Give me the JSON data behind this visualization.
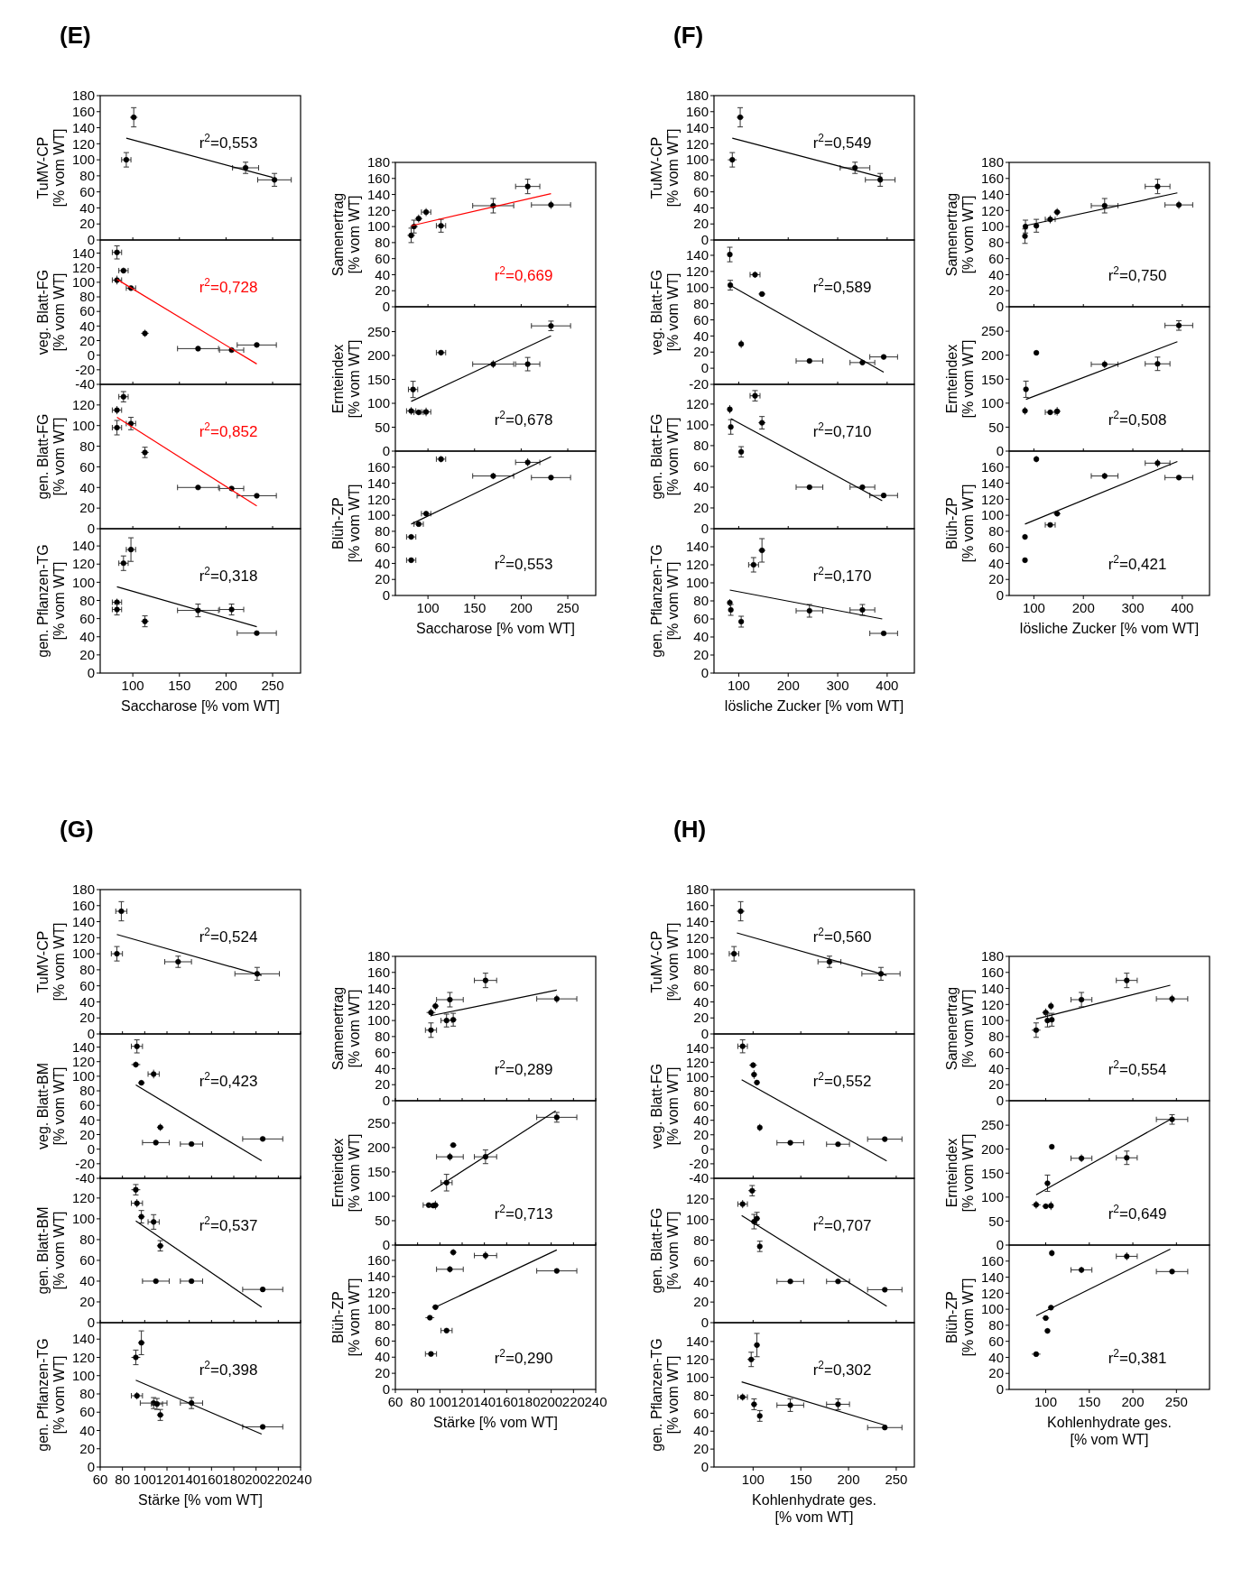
{
  "chart_data": [
    {
      "type": "scatter",
      "title": "(E)",
      "ylabel": "TuMV-CP\n[% vom WT]",
      "xlim": [
        65,
        280
      ],
      "xticks": [
        100,
        150,
        200,
        250
      ],
      "ylim": [
        0,
        180
      ],
      "yticks": [
        0,
        20,
        40,
        60,
        80,
        100,
        120,
        140,
        160,
        180
      ],
      "tick_labels": "y",
      "annotations": [
        "r$^{2}$=0,553"
      ],
      "series": [
        {
          "marker": "circle",
          "color": "#000000",
          "x": [
            93,
            101,
            221,
            252
          ],
          "values": [
            100,
            153,
            90,
            75
          ],
          "errors": [
            9,
            12,
            7,
            8
          ],
          "xerrors": [
            5,
            4,
            14,
            18
          ]
        },
        {
          "type": "line",
          "color": "#000000",
          "x": [
            93,
            250
          ],
          "values": [
            127,
            78
          ]
        }
      ]
    },
    {
      "type": "scatter",
      "ylabel": "veg. Blatt-FG\n[% vom WT]",
      "xlim": [
        65,
        280
      ],
      "xticks": [
        100,
        150,
        200,
        250
      ],
      "ylim": [
        -40,
        158
      ],
      "yticks": [
        -40,
        -20,
        0,
        20,
        40,
        60,
        80,
        100,
        120,
        140
      ],
      "tick_labels": "y",
      "annotations": [
        "r$^{2}$=0,728"
      ],
      "series": [
        {
          "marker": "circle",
          "color": "#000000",
          "x": [
            83,
            90,
            83,
            98,
            113,
            170,
            206,
            233
          ],
          "values": [
            141,
            116,
            103,
            92,
            30,
            9,
            7,
            14
          ],
          "errors": [
            9,
            4,
            6,
            3,
            5,
            1,
            2,
            1
          ],
          "xerrors": [
            5,
            5,
            5,
            5,
            4,
            22,
            13,
            21
          ]
        },
        {
          "type": "line",
          "color": "#ff0000",
          "x": [
            83,
            233
          ],
          "values": [
            104,
            -12
          ]
        }
      ]
    },
    {
      "type": "scatter",
      "ylabel": "gen. Blatt-FG\n[% vom WT]",
      "xlim": [
        65,
        280
      ],
      "xticks": [
        100,
        150,
        200,
        250
      ],
      "ylim": [
        0,
        140
      ],
      "yticks": [
        0,
        20,
        40,
        60,
        80,
        100,
        120
      ],
      "tick_labels": "y",
      "annotations": [
        "r$^{2}$=0,852"
      ],
      "series": [
        {
          "marker": "circle",
          "color": "#000000",
          "x": [
            90,
            83,
            83,
            98,
            113,
            170,
            206,
            233
          ],
          "values": [
            128,
            115,
            98,
            102,
            74,
            40,
            39,
            32
          ],
          "errors": [
            5,
            4,
            7,
            6,
            5,
            2,
            2,
            1
          ],
          "xerrors": [
            5,
            5,
            5,
            5,
            4,
            22,
            13,
            21
          ]
        },
        {
          "type": "line",
          "color": "#ff0000",
          "x": [
            83,
            233
          ],
          "values": [
            108,
            22
          ]
        }
      ]
    },
    {
      "type": "scatter",
      "ylabel": "gen. Pflanzen-TG\n[% vom WT]",
      "xlabel": "Saccharose [% vom WT]",
      "xlim": [
        65,
        280
      ],
      "xticks": [
        100,
        150,
        200,
        250
      ],
      "ylim": [
        0,
        159
      ],
      "yticks": [
        0,
        20,
        40,
        60,
        80,
        100,
        120,
        140
      ],
      "annotations": [
        "r$^{2}$=0,318"
      ],
      "series": [
        {
          "marker": "circle",
          "color": "#000000",
          "x": [
            83,
            83,
            90,
            98,
            113,
            170,
            206,
            233
          ],
          "values": [
            78,
            70,
            121,
            136,
            57,
            69,
            70,
            44
          ],
          "errors": [
            4,
            6,
            8,
            13,
            6,
            7,
            6,
            1
          ],
          "xerrors": [
            5,
            5,
            5,
            5,
            4,
            22,
            13,
            21
          ]
        },
        {
          "type": "line",
          "color": "#000000",
          "x": [
            83,
            233
          ],
          "values": [
            95,
            51
          ]
        }
      ]
    },
    {
      "type": "scatter",
      "ylabel": "Samenertrag\n[% vom WT]",
      "xlim": [
        65,
        280
      ],
      "xticks": [
        100,
        150,
        200,
        250
      ],
      "ylim": [
        0,
        180
      ],
      "yticks": [
        0,
        20,
        40,
        60,
        80,
        100,
        120,
        140,
        160,
        180
      ],
      "tick_labels": "y",
      "annotations": [
        "r$^{2}$=0,669"
      ],
      "series": [
        {
          "marker": "circle",
          "color": "#000000",
          "x": [
            82,
            85,
            90,
            98,
            114,
            170,
            207,
            232
          ],
          "values": [
            89,
            100,
            110,
            118,
            101,
            126,
            150,
            127
          ],
          "errors": [
            9,
            8,
            5,
            5,
            8,
            9,
            9,
            5
          ],
          "xerrors": [
            4,
            4,
            4,
            5,
            5,
            22,
            13,
            21
          ]
        },
        {
          "type": "line",
          "color": "#ff0000",
          "x": [
            82,
            232
          ],
          "values": [
            101,
            141
          ]
        }
      ]
    },
    {
      "type": "scatter",
      "ylabel": "Ernteindex\n[% vom WT]",
      "xlim": [
        65,
        280
      ],
      "xticks": [
        100,
        150,
        200,
        250
      ],
      "ylim": [
        0,
        302
      ],
      "yticks": [
        0,
        50,
        100,
        150,
        200,
        250
      ],
      "tick_labels": "y",
      "annotations": [
        "r$^{2}$=0,678"
      ],
      "series": [
        {
          "marker": "circle",
          "color": "#000000",
          "x": [
            82,
            84,
            90,
            98,
            114,
            170,
            207,
            232
          ],
          "values": [
            84,
            129,
            81,
            82,
            206,
            182,
            182,
            262
          ],
          "errors": [
            8,
            17,
            5,
            9,
            5,
            8,
            14,
            10
          ],
          "xerrors": [
            5,
            5,
            5,
            5,
            5,
            22,
            13,
            21
          ]
        },
        {
          "type": "line",
          "color": "#000000",
          "x": [
            82,
            232
          ],
          "values": [
            104,
            241
          ]
        }
      ]
    },
    {
      "type": "scatter",
      "ylabel": "Blüh-ZP\n[% vom WT]",
      "xlabel": "Saccharose [% vom WT]",
      "xlim": [
        65,
        280
      ],
      "xticks": [
        100,
        150,
        200,
        250
      ],
      "ylim": [
        0,
        180
      ],
      "yticks": [
        0,
        20,
        40,
        60,
        80,
        100,
        120,
        140,
        160
      ],
      "annotations": [
        "r$^{2}$=0,553"
      ],
      "series": [
        {
          "marker": "circle",
          "color": "#000000",
          "x": [
            82,
            82,
            90,
            98,
            114,
            170,
            207,
            232
          ],
          "values": [
            44,
            73,
            89,
            102,
            170,
            149,
            166,
            147
          ],
          "errors": [
            2,
            3,
            2,
            3,
            4,
            4,
            5,
            2
          ],
          "xerrors": [
            5,
            5,
            5,
            5,
            5,
            22,
            13,
            21
          ]
        },
        {
          "type": "line",
          "color": "#000000",
          "x": [
            82,
            232
          ],
          "values": [
            89,
            173
          ]
        }
      ]
    },
    {
      "type": "scatter",
      "title": "(F)",
      "ylabel": "TuMV-CP\n[% vom WT]",
      "xlim": [
        50,
        455
      ],
      "xticks": [
        100,
        200,
        300,
        400
      ],
      "ylim": [
        0,
        180
      ],
      "yticks": [
        0,
        20,
        40,
        60,
        80,
        100,
        120,
        140,
        160,
        180
      ],
      "tick_labels": "y",
      "annotations": [
        "r$^{2}$=0,549"
      ],
      "series": [
        {
          "marker": "circle",
          "color": "#000000",
          "x": [
            87,
            103,
            335,
            386
          ],
          "values": [
            100,
            153,
            90,
            75
          ],
          "errors": [
            9,
            12,
            7,
            8
          ],
          "xerrors": [
            9,
            7,
            30,
            30
          ]
        },
        {
          "type": "line",
          "color": "#000000",
          "x": [
            87,
            390
          ],
          "values": [
            127,
            78
          ]
        }
      ]
    },
    {
      "type": "scatter",
      "ylabel": "veg. Blatt-FG\n[% vom WT]",
      "xlim": [
        50,
        455
      ],
      "xticks": [
        100,
        200,
        300,
        400
      ],
      "ylim": [
        -20,
        159
      ],
      "yticks": [
        -20,
        0,
        20,
        40,
        60,
        80,
        100,
        120,
        140
      ],
      "tick_labels": "y",
      "annotations": [
        "r$^{2}$=0,589"
      ],
      "series": [
        {
          "marker": "circle",
          "color": "#000000",
          "x": [
            82,
            83,
            133,
            147,
            105,
            243,
            350,
            393
          ],
          "values": [
            141,
            103,
            116,
            92,
            30,
            9,
            7,
            14
          ],
          "errors": [
            9,
            6,
            4,
            3,
            5,
            1,
            2,
            1
          ],
          "xerrors": [
            3,
            4,
            10,
            7,
            5,
            27,
            25,
            28
          ]
        },
        {
          "type": "line",
          "color": "#000000",
          "x": [
            82,
            393
          ],
          "values": [
            103,
            -5
          ]
        }
      ]
    },
    {
      "type": "scatter",
      "ylabel": "gen. Blatt-FG\n[% vom WT]",
      "xlim": [
        50,
        455
      ],
      "xticks": [
        100,
        200,
        300,
        400
      ],
      "ylim": [
        0,
        139
      ],
      "yticks": [
        0,
        20,
        40,
        60,
        80,
        100,
        120
      ],
      "tick_labels": "y",
      "annotations": [
        "r$^{2}$=0,710"
      ],
      "series": [
        {
          "marker": "circle",
          "color": "#000000",
          "x": [
            82,
            84,
            133,
            147,
            105,
            243,
            350,
            393
          ],
          "values": [
            115,
            98,
            128,
            102,
            74,
            40,
            40,
            32
          ],
          "errors": [
            4,
            7,
            5,
            6,
            5,
            2,
            2,
            1
          ],
          "xerrors": [
            3,
            4,
            10,
            7,
            5,
            27,
            25,
            28
          ]
        },
        {
          "type": "line",
          "color": "#000000",
          "x": [
            84,
            390
          ],
          "values": [
            106,
            27
          ]
        }
      ]
    },
    {
      "type": "scatter",
      "ylabel": "gen. Pflanzen-TG\n[% vom WT]",
      "xlabel": "lösliche Zucker [% vom WT]",
      "xlim": [
        50,
        455
      ],
      "xticks": [
        100,
        200,
        300,
        400
      ],
      "ylim": [
        0,
        160
      ],
      "yticks": [
        0,
        20,
        40,
        60,
        80,
        100,
        120,
        140
      ],
      "annotations": [
        "r$^{2}$=0,170"
      ],
      "series": [
        {
          "marker": "circle",
          "color": "#000000",
          "x": [
            82,
            84,
            130,
            147,
            105,
            243,
            350,
            393
          ],
          "values": [
            78,
            70,
            120,
            136,
            57,
            69,
            70,
            44
          ],
          "errors": [
            4,
            6,
            8,
            13,
            6,
            7,
            6,
            1
          ],
          "xerrors": [
            3,
            4,
            10,
            7,
            5,
            27,
            25,
            28
          ]
        },
        {
          "type": "line",
          "color": "#000000",
          "x": [
            82,
            390
          ],
          "values": [
            92,
            60
          ]
        }
      ]
    },
    {
      "type": "scatter",
      "ylabel": "Samenertrag\n[% vom WT]",
      "xlim": [
        50,
        455
      ],
      "xticks": [
        100,
        200,
        300,
        400
      ],
      "ylim": [
        0,
        180
      ],
      "yticks": [
        0,
        20,
        40,
        60,
        80,
        100,
        120,
        140,
        160,
        180
      ],
      "tick_labels": "y",
      "annotations": [
        "r$^{2}$=0,750"
      ],
      "series": [
        {
          "marker": "circle",
          "color": "#000000",
          "x": [
            82,
            83,
            105,
            133,
            147,
            243,
            350,
            393
          ],
          "values": [
            88,
            100,
            101,
            109,
            118,
            126,
            150,
            127
          ],
          "errors": [
            9,
            8,
            8,
            5,
            5,
            9,
            9,
            5
          ],
          "xerrors": [
            3,
            4,
            5,
            10,
            7,
            27,
            25,
            28
          ]
        },
        {
          "type": "line",
          "color": "#000000",
          "x": [
            82,
            390
          ],
          "values": [
            101,
            142
          ]
        }
      ]
    },
    {
      "type": "scatter",
      "ylabel": "Ernteindex\n[% vom WT]",
      "xlim": [
        50,
        455
      ],
      "xticks": [
        100,
        200,
        300,
        400
      ],
      "ylim": [
        0,
        301
      ],
      "yticks": [
        0,
        50,
        100,
        150,
        200,
        250
      ],
      "tick_labels": "y",
      "annotations": [
        "r$^{2}$=0,508"
      ],
      "series": [
        {
          "marker": "circle",
          "color": "#000000",
          "x": [
            82,
            84,
            105,
            133,
            147,
            243,
            350,
            393
          ],
          "values": [
            84,
            129,
            205,
            81,
            83,
            181,
            182,
            262
          ],
          "errors": [
            8,
            17,
            5,
            5,
            9,
            8,
            14,
            10
          ],
          "xerrors": [
            3,
            4,
            5,
            10,
            7,
            27,
            25,
            28
          ]
        },
        {
          "type": "line",
          "color": "#000000",
          "x": [
            84,
            390
          ],
          "values": [
            108,
            228
          ]
        }
      ]
    },
    {
      "type": "scatter",
      "ylabel": "Blüh-ZP\n[% vom WT]",
      "xlabel": "lösliche Zucker [% vom WT]",
      "xlim": [
        50,
        455
      ],
      "xticks": [
        100,
        200,
        300,
        400
      ],
      "ylim": [
        0,
        180
      ],
      "yticks": [
        0,
        20,
        40,
        60,
        80,
        100,
        120,
        140,
        160
      ],
      "annotations": [
        "r$^{2}$=0,421"
      ],
      "series": [
        {
          "marker": "circle",
          "color": "#000000",
          "x": [
            82,
            82,
            105,
            133,
            147,
            243,
            350,
            393
          ],
          "values": [
            44,
            73,
            170,
            88,
            102,
            149,
            165,
            147
          ],
          "errors": [
            2,
            3,
            4,
            2,
            3,
            4,
            5,
            2
          ],
          "xerrors": [
            3,
            4,
            5,
            10,
            7,
            27,
            25,
            28
          ]
        },
        {
          "type": "line",
          "color": "#000000",
          "x": [
            82,
            390
          ],
          "values": [
            89,
            167
          ]
        }
      ]
    },
    {
      "type": "scatter",
      "title": "(G)",
      "ylabel": "TuMV-CP\n[% vom WT]",
      "xlim": [
        60,
        240
      ],
      "xticks": [
        60,
        80,
        100,
        120,
        140,
        160,
        180,
        200,
        220,
        240
      ],
      "ylim": [
        0,
        180
      ],
      "yticks": [
        0,
        20,
        40,
        60,
        80,
        100,
        120,
        140,
        160,
        180
      ],
      "tick_labels": "y",
      "annotations": [
        "r$^{2}$=0,524"
      ],
      "series": [
        {
          "marker": "circle",
          "color": "#000000",
          "x": [
            75,
            79,
            130,
            201
          ],
          "values": [
            100,
            153,
            90,
            75
          ],
          "errors": [
            9,
            12,
            7,
            8
          ],
          "xerrors": [
            5,
            5,
            12,
            20
          ]
        },
        {
          "type": "line",
          "color": "#000000",
          "x": [
            75,
            205
          ],
          "values": [
            124,
            73
          ]
        }
      ]
    },
    {
      "type": "scatter",
      "ylabel": "veg. Blatt-BM\n[% vom WT]",
      "xlim": [
        60,
        240
      ],
      "xticks": [
        60,
        80,
        100,
        120,
        140,
        160,
        180,
        200,
        220,
        240
      ],
      "ylim": [
        -40,
        158
      ],
      "yticks": [
        -40,
        -20,
        0,
        20,
        40,
        60,
        80,
        100,
        120,
        140
      ],
      "tick_labels": "y",
      "annotations": [
        "r$^{2}$=0,423"
      ],
      "series": [
        {
          "marker": "circle",
          "color": "#000000",
          "x": [
            93,
            92,
            97,
            108,
            114,
            110,
            142,
            206
          ],
          "values": [
            141,
            116,
            91,
            103,
            30,
            9,
            7,
            14
          ],
          "errors": [
            9,
            4,
            3,
            6,
            5,
            1,
            2,
            1
          ],
          "xerrors": [
            5,
            4,
            3,
            5,
            3,
            12,
            10,
            18
          ]
        },
        {
          "type": "line",
          "color": "#000000",
          "x": [
            92,
            205
          ],
          "values": [
            88,
            -16
          ]
        }
      ]
    },
    {
      "type": "scatter",
      "ylabel": "gen. Blatt-BM\n[% vom WT]",
      "xlim": [
        60,
        240
      ],
      "xticks": [
        60,
        80,
        100,
        120,
        140,
        160,
        180,
        200,
        220,
        240
      ],
      "ylim": [
        0,
        139
      ],
      "yticks": [
        0,
        20,
        40,
        60,
        80,
        100,
        120
      ],
      "tick_labels": "y",
      "annotations": [
        "r$^{2}$=0,537"
      ],
      "series": [
        {
          "marker": "circle",
          "color": "#000000",
          "x": [
            92,
            93,
            97,
            108,
            114,
            110,
            142,
            206
          ],
          "values": [
            128,
            115,
            102,
            97,
            74,
            40,
            40,
            32
          ],
          "errors": [
            5,
            4,
            6,
            7,
            5,
            2,
            2,
            1
          ],
          "xerrors": [
            4,
            5,
            3,
            5,
            3,
            12,
            10,
            18
          ]
        },
        {
          "type": "line",
          "color": "#000000",
          "x": [
            92,
            205
          ],
          "values": [
            98,
            15
          ]
        }
      ]
    },
    {
      "type": "scatter",
      "ylabel": "gen. Pflanzen-TG\n[% vom WT]",
      "xlabel": "Stärke [% vom WT]",
      "xlim": [
        60,
        240
      ],
      "xticks": [
        60,
        80,
        100,
        120,
        140,
        160,
        180,
        200,
        220,
        240
      ],
      "ylim": [
        0,
        158
      ],
      "yticks": [
        0,
        20,
        40,
        60,
        80,
        100,
        120,
        140
      ],
      "annotations": [
        "r$^{2}$=0,398"
      ],
      "series": [
        {
          "marker": "circle",
          "color": "#000000",
          "x": [
            93,
            92,
            97,
            108,
            111,
            114,
            142,
            206
          ],
          "values": [
            78,
            120,
            136,
            70,
            69,
            57,
            70,
            44
          ],
          "errors": [
            4,
            8,
            13,
            6,
            6,
            6,
            6,
            1
          ],
          "xerrors": [
            5,
            4,
            3,
            12,
            5,
            3,
            10,
            18
          ]
        },
        {
          "type": "line",
          "color": "#000000",
          "x": [
            92,
            205
          ],
          "values": [
            95,
            36
          ]
        }
      ]
    },
    {
      "type": "scatter",
      "ylabel": "Samenertrag\n[% vom WT]",
      "xlim": [
        60,
        240
      ],
      "xticks": [
        60,
        80,
        100,
        120,
        140,
        160,
        180,
        200,
        220,
        240
      ],
      "ylim": [
        0,
        180
      ],
      "yticks": [
        0,
        20,
        40,
        60,
        80,
        100,
        120,
        140,
        160,
        180
      ],
      "tick_labels": "y",
      "annotations": [
        "r$^{2}$=0,289"
      ],
      "series": [
        {
          "marker": "circle",
          "color": "#000000",
          "x": [
            92,
            92,
            96,
            106,
            112,
            109,
            141,
            205
          ],
          "values": [
            88,
            110,
            118,
            100,
            101,
            126,
            150,
            127
          ],
          "errors": [
            9,
            5,
            5,
            8,
            8,
            9,
            9,
            5
          ],
          "xerrors": [
            5,
            4,
            3,
            5,
            3,
            12,
            10,
            18
          ]
        },
        {
          "type": "line",
          "color": "#000000",
          "x": [
            92,
            205
          ],
          "values": [
            106,
            138
          ]
        }
      ]
    },
    {
      "type": "scatter",
      "ylabel": "Ernteindex\n[% vom WT]",
      "xlim": [
        60,
        240
      ],
      "xticks": [
        60,
        80,
        100,
        120,
        140,
        160,
        180,
        200,
        220,
        240
      ],
      "ylim": [
        0,
        296
      ],
      "yticks": [
        0,
        50,
        100,
        150,
        200,
        250
      ],
      "tick_labels": "y",
      "annotations": [
        "r$^{2}$=0,713"
      ],
      "series": [
        {
          "marker": "circle",
          "color": "#000000",
          "x": [
            90,
            94,
            96,
            106,
            112,
            109,
            141,
            205
          ],
          "values": [
            82,
            81,
            82,
            128,
            205,
            181,
            181,
            262
          ],
          "errors": [
            5,
            5,
            9,
            17,
            5,
            8,
            14,
            10
          ],
          "xerrors": [
            5,
            4,
            3,
            5,
            3,
            12,
            10,
            18
          ]
        },
        {
          "type": "line",
          "color": "#000000",
          "x": [
            92,
            204
          ],
          "values": [
            110,
            275
          ]
        }
      ]
    },
    {
      "type": "scatter",
      "ylabel": "Blüh-ZP\n[% vom WT]",
      "xlabel": "Stärke [% vom WT]",
      "xlim": [
        60,
        240
      ],
      "xticks": [
        60,
        80,
        100,
        120,
        140,
        160,
        180,
        200,
        220,
        240
      ],
      "ylim": [
        0,
        179
      ],
      "yticks": [
        0,
        20,
        40,
        60,
        80,
        100,
        120,
        140,
        160
      ],
      "annotations": [
        "r$^{2}$=0,290"
      ],
      "series": [
        {
          "marker": "circle",
          "color": "#000000",
          "x": [
            92,
            91,
            96,
            106,
            109,
            112,
            141,
            205
          ],
          "values": [
            44,
            89,
            102,
            73,
            149,
            170,
            166,
            147
          ],
          "errors": [
            2,
            2,
            3,
            3,
            4,
            4,
            5,
            2
          ],
          "xerrors": [
            5,
            4,
            3,
            5,
            12,
            3,
            10,
            18
          ]
        },
        {
          "type": "line",
          "color": "#000000",
          "x": [
            96,
            205
          ],
          "values": [
            102,
            173
          ]
        }
      ]
    },
    {
      "type": "scatter",
      "title": "(H)",
      "ylabel": "TuMV-CP\n[% vom WT]",
      "xlim": [
        59,
        269
      ],
      "xticks": [
        100,
        150,
        200,
        250
      ],
      "ylim": [
        0,
        180
      ],
      "yticks": [
        0,
        20,
        40,
        60,
        80,
        100,
        120,
        140,
        160,
        180
      ],
      "tick_labels": "y",
      "annotations": [
        "r$^{2}$=0,560"
      ],
      "series": [
        {
          "marker": "circle",
          "color": "#000000",
          "x": [
            80,
            87,
            180,
            234
          ],
          "values": [
            100,
            153,
            90,
            75
          ],
          "errors": [
            9,
            12,
            7,
            8
          ],
          "xerrors": [
            5,
            4,
            12,
            20
          ]
        },
        {
          "type": "line",
          "color": "#000000",
          "x": [
            83,
            240
          ],
          "values": [
            126,
            73
          ]
        }
      ]
    },
    {
      "type": "scatter",
      "ylabel": "veg. Blatt-FG\n[% vom WT]",
      "xlim": [
        59,
        269
      ],
      "xticks": [
        100,
        150,
        200,
        250
      ],
      "ylim": [
        -40,
        159
      ],
      "yticks": [
        -40,
        -20,
        0,
        20,
        40,
        60,
        80,
        100,
        120,
        140
      ],
      "tick_labels": "y",
      "annotations": [
        "r$^{2}$=0,552"
      ],
      "series": [
        {
          "marker": "circle",
          "color": "#000000",
          "x": [
            89,
            100,
            101,
            104,
            107,
            139,
            189,
            238
          ],
          "values": [
            142,
            116,
            103,
            92,
            30,
            9,
            7,
            14
          ],
          "errors": [
            9,
            4,
            6,
            3,
            5,
            1,
            2,
            1
          ],
          "xerrors": [
            5,
            4,
            3,
            3,
            2,
            14,
            12,
            18
          ]
        },
        {
          "type": "line",
          "color": "#000000",
          "x": [
            88,
            240
          ],
          "values": [
            96,
            -16
          ]
        }
      ]
    },
    {
      "type": "scatter",
      "ylabel": "gen. Blatt-FG\n[% vom WT]",
      "xlim": [
        59,
        269
      ],
      "xticks": [
        100,
        150,
        200,
        250
      ],
      "ylim": [
        0,
        140
      ],
      "yticks": [
        0,
        20,
        40,
        60,
        80,
        100,
        120
      ],
      "tick_labels": "y",
      "annotations": [
        "r$^{2}$=0,707"
      ],
      "series": [
        {
          "marker": "circle",
          "color": "#000000",
          "x": [
            89,
            99,
            101,
            104,
            107,
            139,
            189,
            238
          ],
          "values": [
            115,
            128,
            98,
            101,
            74,
            40,
            40,
            32
          ],
          "errors": [
            4,
            5,
            7,
            6,
            5,
            2,
            2,
            1
          ],
          "xerrors": [
            5,
            4,
            3,
            3,
            2,
            14,
            12,
            18
          ]
        },
        {
          "type": "line",
          "color": "#000000",
          "x": [
            88,
            240
          ],
          "values": [
            104,
            16
          ]
        }
      ]
    },
    {
      "type": "scatter",
      "ylabel": "gen. Pflanzen-TG\n[% vom WT]",
      "xlabel": "Kohlenhydrate ges.\n[% vom WT]",
      "xlim": [
        59,
        269
      ],
      "xticks": [
        100,
        150,
        200,
        250
      ],
      "ylim": [
        0,
        161
      ],
      "yticks": [
        0,
        20,
        40,
        60,
        80,
        100,
        120,
        140
      ],
      "annotations": [
        "r$^{2}$=0,302"
      ],
      "series": [
        {
          "marker": "circle",
          "color": "#000000",
          "x": [
            89,
            98,
            101,
            104,
            107,
            139,
            189,
            238
          ],
          "values": [
            78,
            120,
            70,
            136,
            57,
            69,
            70,
            44
          ],
          "errors": [
            4,
            8,
            6,
            13,
            6,
            7,
            6,
            1
          ],
          "xerrors": [
            5,
            4,
            3,
            3,
            2,
            14,
            12,
            18
          ]
        },
        {
          "type": "line",
          "color": "#000000",
          "x": [
            88,
            240
          ],
          "values": [
            95,
            46
          ]
        }
      ]
    },
    {
      "type": "scatter",
      "ylabel": "Samenertrag\n[% vom WT]",
      "xlim": [
        58,
        288
      ],
      "xticks": [
        100,
        150,
        200,
        250
      ],
      "ylim": [
        0,
        180
      ],
      "yticks": [
        0,
        20,
        40,
        60,
        80,
        100,
        120,
        140,
        160,
        180
      ],
      "tick_labels": "y",
      "annotations": [
        "r$^{2}$=0,554"
      ],
      "series": [
        {
          "marker": "circle",
          "color": "#000000",
          "x": [
            89,
            100,
            102,
            106,
            107,
            141,
            193,
            245
          ],
          "values": [
            88,
            110,
            100,
            118,
            101,
            126,
            150,
            127
          ],
          "errors": [
            9,
            5,
            8,
            5,
            8,
            9,
            9,
            5
          ],
          "xerrors": [
            5,
            4,
            3,
            3,
            2,
            12,
            12,
            18
          ]
        },
        {
          "type": "line",
          "color": "#000000",
          "x": [
            89,
            243
          ],
          "values": [
            102,
            144
          ]
        }
      ]
    },
    {
      "type": "scatter",
      "ylabel": "Ernteindex\n[% vom WT]",
      "xlim": [
        58,
        288
      ],
      "xticks": [
        100,
        150,
        200,
        250
      ],
      "ylim": [
        0,
        301
      ],
      "yticks": [
        0,
        50,
        100,
        150,
        200,
        250
      ],
      "tick_labels": "y",
      "annotations": [
        "r$^{2}$=0,649"
      ],
      "series": [
        {
          "marker": "circle",
          "color": "#000000",
          "x": [
            89,
            100,
            102,
            106,
            107,
            141,
            193,
            245
          ],
          "values": [
            84,
            81,
            129,
            82,
            205,
            181,
            182,
            262
          ],
          "errors": [
            8,
            5,
            17,
            9,
            5,
            8,
            14,
            10
          ],
          "xerrors": [
            5,
            4,
            3,
            3,
            2,
            12,
            12,
            18
          ]
        },
        {
          "type": "line",
          "color": "#000000",
          "x": [
            89,
            243
          ],
          "values": [
            105,
            262
          ]
        }
      ]
    },
    {
      "type": "scatter",
      "ylabel": "Blüh-ZP\n[% vom WT]",
      "xlabel": "Kohlenhydrate ges.\n[% vom WT]",
      "xlim": [
        58,
        288
      ],
      "xticks": [
        100,
        150,
        200,
        250
      ],
      "ylim": [
        0,
        180
      ],
      "yticks": [
        0,
        20,
        40,
        60,
        80,
        100,
        120,
        140,
        160
      ],
      "annotations": [
        "r$^{2}$=0,381"
      ],
      "series": [
        {
          "marker": "circle",
          "color": "#000000",
          "x": [
            89,
            100,
            102,
            106,
            107,
            141,
            193,
            245
          ],
          "values": [
            44,
            89,
            73,
            102,
            170,
            149,
            166,
            147
          ],
          "errors": [
            2,
            2,
            3,
            3,
            4,
            4,
            5,
            2
          ],
          "xerrors": [
            5,
            4,
            3,
            3,
            2,
            12,
            12,
            18
          ]
        },
        {
          "type": "line",
          "color": "#000000",
          "x": [
            89,
            243
          ],
          "values": [
            92,
            175
          ]
        }
      ]
    }
  ]
}
